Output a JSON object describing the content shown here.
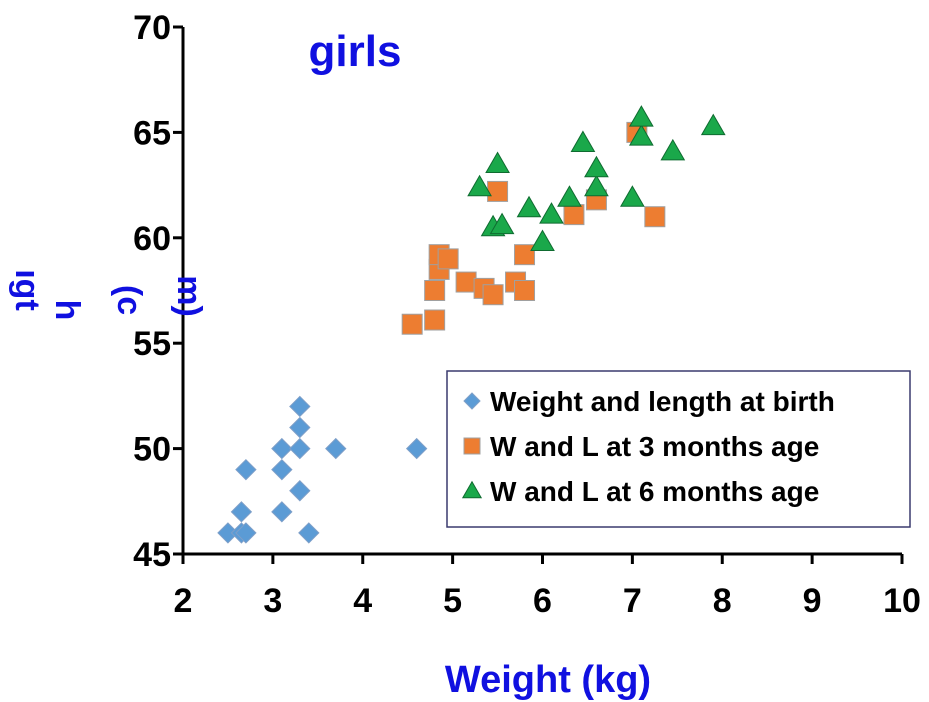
{
  "chart_data": {
    "type": "scatter",
    "title": "girls",
    "xlabel": "Weight (kg)",
    "ylabel_fragments": [
      "ıgt",
      "h",
      "(c",
      "m)"
    ],
    "xlim": [
      2,
      10
    ],
    "ylim": [
      45,
      70
    ],
    "xticks": [
      2,
      3,
      4,
      5,
      6,
      7,
      8,
      9,
      10
    ],
    "yticks": [
      45,
      50,
      55,
      60,
      65,
      70
    ],
    "grid": false,
    "legend_position": "bottom-right",
    "text_color": "#1010e0",
    "series": [
      {
        "name": "Weight and length at birth",
        "marker": "diamond",
        "color": "#5b9bd5",
        "points": [
          [
            2.5,
            46
          ],
          [
            2.65,
            46
          ],
          [
            2.7,
            46
          ],
          [
            2.65,
            47
          ],
          [
            2.7,
            49
          ],
          [
            3.1,
            47
          ],
          [
            3.1,
            49
          ],
          [
            3.1,
            50
          ],
          [
            3.3,
            48
          ],
          [
            3.3,
            50
          ],
          [
            3.3,
            51
          ],
          [
            3.3,
            52
          ],
          [
            3.4,
            46
          ],
          [
            3.7,
            50
          ],
          [
            4.6,
            50
          ]
        ]
      },
      {
        "name": "W and L at 3 months age",
        "marker": "square",
        "color": "#ed7d31",
        "points": [
          [
            4.55,
            55.9
          ],
          [
            4.8,
            56.1
          ],
          [
            4.8,
            57.5
          ],
          [
            4.85,
            58.5
          ],
          [
            4.85,
            59.2
          ],
          [
            4.95,
            59.0
          ],
          [
            5.15,
            57.9
          ],
          [
            5.35,
            57.6
          ],
          [
            5.45,
            57.3
          ],
          [
            5.5,
            62.2
          ],
          [
            5.7,
            57.9
          ],
          [
            5.8,
            57.5
          ],
          [
            5.8,
            59.2
          ],
          [
            6.35,
            61.1
          ],
          [
            6.6,
            61.8
          ],
          [
            7.05,
            65.0
          ],
          [
            7.25,
            61.0
          ]
        ]
      },
      {
        "name": "W and L at 6 months age",
        "marker": "triangle",
        "color": "#1aa84a",
        "points": [
          [
            5.3,
            62.4
          ],
          [
            5.45,
            60.5
          ],
          [
            5.5,
            63.5
          ],
          [
            5.55,
            60.6
          ],
          [
            5.85,
            61.4
          ],
          [
            6.0,
            59.8
          ],
          [
            6.1,
            61.1
          ],
          [
            6.3,
            61.9
          ],
          [
            6.45,
            64.5
          ],
          [
            6.6,
            62.4
          ],
          [
            6.6,
            63.3
          ],
          [
            7.0,
            61.9
          ],
          [
            7.1,
            64.8
          ],
          [
            7.1,
            65.7
          ],
          [
            7.45,
            64.1
          ],
          [
            7.9,
            65.3
          ]
        ]
      }
    ]
  }
}
